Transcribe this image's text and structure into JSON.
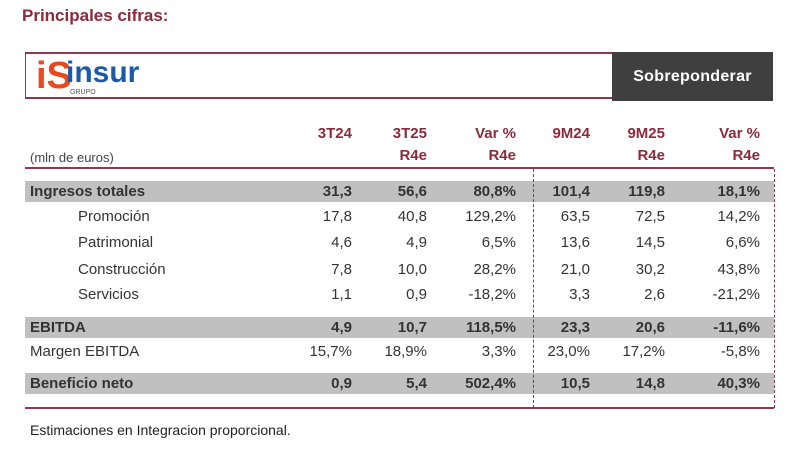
{
  "title": "Principales cifras:",
  "banner": {
    "logo_text": "insur",
    "logo_sub": "GRUPO",
    "rating": "Sobreponderar"
  },
  "colors": {
    "accent": "#8a2b3d",
    "band": "#c0c0c0",
    "rating_bg": "#3f3f3f"
  },
  "table": {
    "unit": "(mln de euros)",
    "headers": [
      [
        "",
        "3T24"
      ],
      [
        "3T25",
        "R4e"
      ],
      [
        "Var %",
        "R4e"
      ],
      [
        "",
        "9M24"
      ],
      [
        "9M25",
        "R4e"
      ],
      [
        "Var %",
        "R4e"
      ]
    ],
    "rows": [
      {
        "label": "Ingresos totales",
        "values": [
          "31,3",
          "56,6",
          "80,8%",
          "101,4",
          "119,8",
          "18,1%"
        ],
        "style": "band"
      },
      {
        "label": "Promoción",
        "values": [
          "17,8",
          "40,8",
          "129,2%",
          "63,5",
          "72,5",
          "14,2%"
        ],
        "style": "indent"
      },
      {
        "label": "Patrimonial",
        "values": [
          "4,6",
          "4,9",
          "6,5%",
          "13,6",
          "14,5",
          "6,6%"
        ],
        "style": "indent"
      },
      {
        "label": "Construcción",
        "values": [
          "7,8",
          "10,0",
          "28,2%",
          "21,0",
          "30,2",
          "43,8%"
        ],
        "style": "indent"
      },
      {
        "label": "Servicios",
        "values": [
          "1,1",
          "0,9",
          "-18,2%",
          "3,3",
          "2,6",
          "-21,2%"
        ],
        "style": "indent"
      },
      {
        "label": "EBITDA",
        "values": [
          "4,9",
          "10,7",
          "118,5%",
          "23,3",
          "20,6",
          "-11,6%"
        ],
        "style": "band"
      },
      {
        "label": "Margen EBITDA",
        "values": [
          "15,7%",
          "18,9%",
          "3,3%",
          "23,0%",
          "17,2%",
          "-5,8%"
        ],
        "style": "plain"
      },
      {
        "label": "Beneficio neto",
        "values": [
          "0,9",
          "5,4",
          "502,4%",
          "10,5",
          "14,8",
          "40,3%"
        ],
        "style": "band"
      }
    ]
  },
  "note": "Estimaciones en Integracion proporcional."
}
